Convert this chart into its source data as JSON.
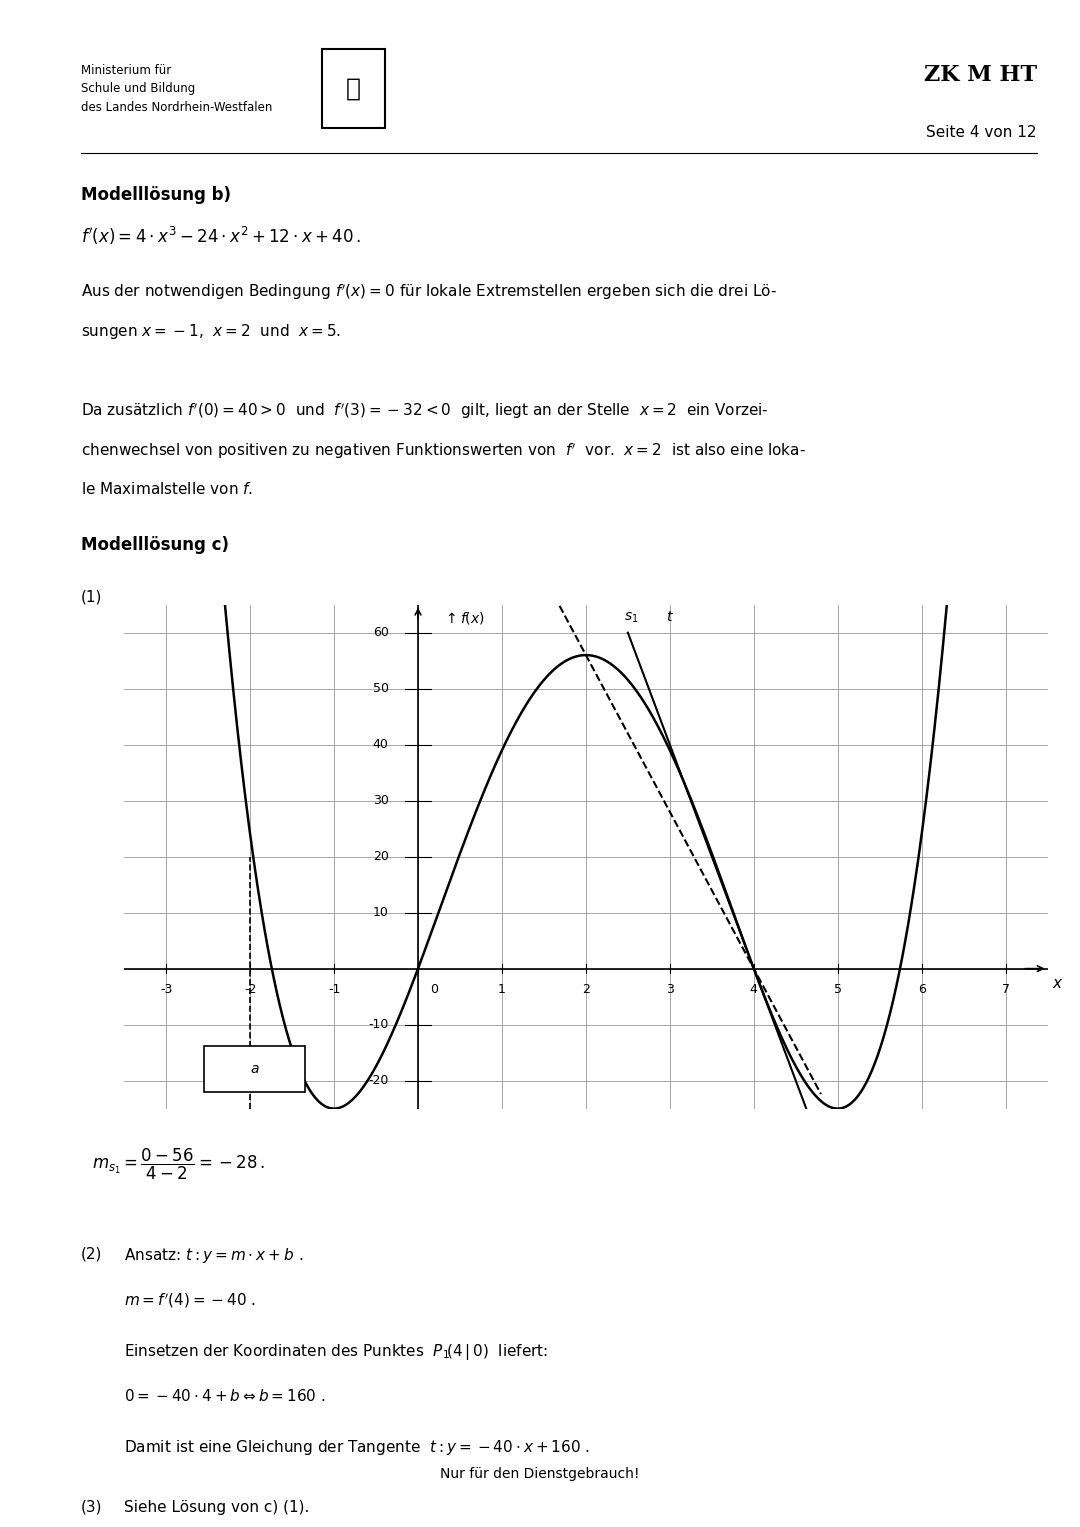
{
  "page_title": "ZK M HT",
  "header_line1": "Ministerium für",
  "header_line2": "Schule und Bildung",
  "header_line3": "des Landes Nordrhein-Westfalen",
  "page_number": "Seite 4 von 12",
  "section_b_title": "Modelllösung b)",
  "formula_fp": "f’(x) = 4·x³ − 24·x² + 12·x + 40 .",
  "text_b1": "Aus der notwendigen Bedingung f’(x) = 0 für lokale Extremstellen ergeben sich die drei Lö-",
  "text_b2": "sungen x = −1,  x = 2  und  x = 5 .",
  "text_b3": "Da zusätzlich f’(0) = 40 > 0  und  f’(3) = −32 < 0  gilt, liegt an der Stelle  x = 2  ein Vorzei-",
  "text_b4": "chenwechsel von positiven zu negativen Funktionswerten von  f’  vor.  x = 2  ist also eine loka-",
  "text_b5": "le Maximalstelle von f .",
  "section_c_title": "Modelllösung c)",
  "item1_label": "(1)",
  "graph_xlim": [
    -3.5,
    7.5
  ],
  "graph_ylim": [
    -25,
    65
  ],
  "graph_xticks": [
    -3,
    -2,
    -1,
    0,
    1,
    2,
    3,
    4,
    5,
    6,
    7
  ],
  "graph_yticks": [
    -20,
    -10,
    10,
    20,
    30,
    40,
    50,
    60
  ],
  "slope_formula": "m_{s_1} = \\frac{0-56}{4-2} = -28 .",
  "item2_label": "(2)",
  "text_2a": "Ansatz: t : y = m·x + b .",
  "text_2b": "m = f’(4) = −40 .",
  "text_2c": "Einsetzen der Koordinaten des Punktes  P_1(4|0)  liefert:",
  "text_2d": "0 = −40·4 + b ⇔ b = 160 .",
  "text_2e": "Damit ist eine Gleichung der Tangente  t : y = −40·x + 160 .",
  "item3_label": "(3)",
  "text_3": "Siehe Lösung von c) (1).",
  "footer": "Nur für den Dienstgebrauch!",
  "bg_color": "#ffffff",
  "text_color": "#000000",
  "grid_color": "#999999",
  "curve_color": "#000000"
}
